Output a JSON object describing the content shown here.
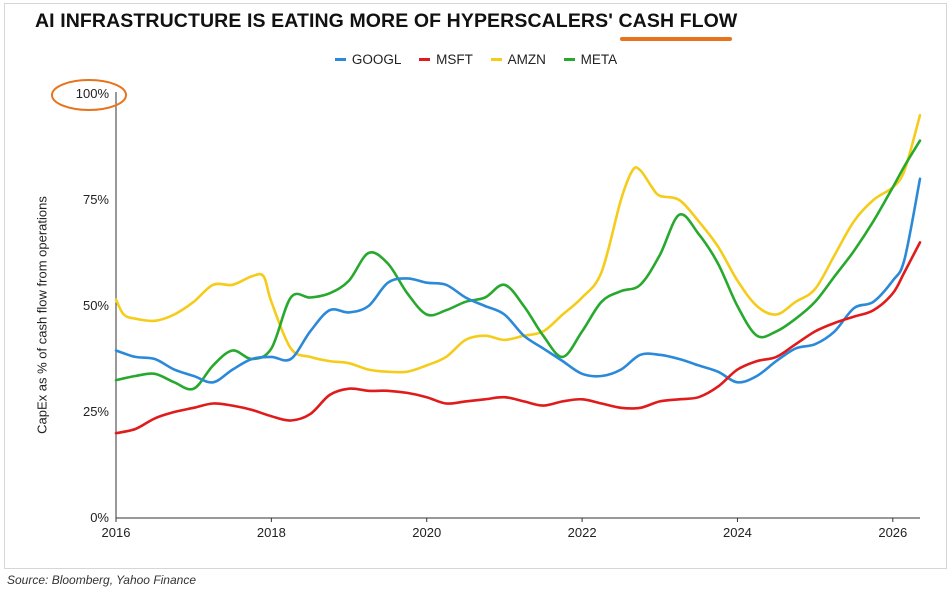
{
  "header": {
    "title": "AI INFRASTRUCTURE IS EATING MORE OF HYPERSCALERS' CASH FLOW"
  },
  "source_note": "Source: Bloomberg, Yahoo Finance",
  "colors": {
    "GOOGL": "#2b89d9",
    "MSFT": "#e01b1b",
    "AMZN": "#f5cc1a",
    "META": "#27a92d",
    "highlight": "#e8731d"
  },
  "chart_data": {
    "type": "line",
    "title": "AI INFRASTRUCTURE IS EATING MORE OF HYPERSCALERS' CASH FLOW",
    "xlabel": "",
    "ylabel": "CapEx as % of cash flow from operations",
    "xlim": [
      2016,
      2026.35
    ],
    "ylim": [
      0,
      100
    ],
    "x_ticks": [
      "2016",
      "2018",
      "2020",
      "2022",
      "2024",
      "2026"
    ],
    "y_ticks": [
      "0%",
      "25%",
      "50%",
      "75%",
      "100%"
    ],
    "legend_position": "top-center",
    "grid": false,
    "series": [
      {
        "name": "GOOGL",
        "x": [
          2016,
          2016.25,
          2016.5,
          2016.75,
          2017,
          2017.25,
          2017.5,
          2017.75,
          2018,
          2018.25,
          2018.5,
          2018.75,
          2019,
          2019.25,
          2019.5,
          2019.75,
          2020,
          2020.25,
          2020.5,
          2020.75,
          2021,
          2021.25,
          2021.5,
          2021.75,
          2022,
          2022.25,
          2022.5,
          2022.75,
          2023,
          2023.25,
          2023.5,
          2023.75,
          2024,
          2024.25,
          2024.5,
          2024.75,
          2025,
          2025.25,
          2025.5,
          2025.75,
          2026,
          2026.15,
          2026.35
        ],
        "values": [
          39.5,
          38,
          37.5,
          35,
          33.5,
          32,
          35,
          37.5,
          38,
          37.5,
          44,
          49,
          48.5,
          50,
          55.5,
          56.5,
          55.5,
          55,
          52,
          50,
          48,
          43,
          40,
          37,
          34,
          33.5,
          35,
          38.5,
          38.5,
          37.5,
          36,
          34.5,
          32,
          33.5,
          37,
          40,
          41,
          44,
          49.5,
          51,
          56,
          61,
          80
        ]
      },
      {
        "name": "MSFT",
        "x": [
          2016,
          2016.25,
          2016.5,
          2016.75,
          2017,
          2017.25,
          2017.5,
          2017.75,
          2018,
          2018.25,
          2018.5,
          2018.75,
          2019,
          2019.25,
          2019.5,
          2019.75,
          2020,
          2020.25,
          2020.5,
          2020.75,
          2021,
          2021.25,
          2021.5,
          2021.75,
          2022,
          2022.25,
          2022.5,
          2022.75,
          2023,
          2023.25,
          2023.5,
          2023.75,
          2024,
          2024.25,
          2024.5,
          2024.75,
          2025,
          2025.25,
          2025.5,
          2025.75,
          2026,
          2026.15,
          2026.35
        ],
        "values": [
          20,
          21,
          23.5,
          25,
          26,
          27,
          26.5,
          25.5,
          24,
          23,
          24.5,
          29,
          30.5,
          30,
          30,
          29.5,
          28.5,
          27,
          27.5,
          28,
          28.5,
          27.5,
          26.5,
          27.5,
          28,
          27,
          26,
          26,
          27.5,
          28,
          28.5,
          31,
          35,
          37,
          38,
          41,
          44,
          46,
          47.5,
          49,
          53,
          58,
          65
        ]
      },
      {
        "name": "AMZN",
        "x": [
          2016,
          2016.1,
          2016.25,
          2016.5,
          2016.75,
          2017,
          2017.25,
          2017.5,
          2017.75,
          2017.9,
          2018,
          2018.25,
          2018.5,
          2018.75,
          2019,
          2019.25,
          2019.5,
          2019.75,
          2020,
          2020.25,
          2020.5,
          2020.75,
          2021,
          2021.25,
          2021.5,
          2021.75,
          2022,
          2022.25,
          2022.5,
          2022.65,
          2022.75,
          2022.9,
          2023,
          2023.25,
          2023.5,
          2023.75,
          2024,
          2024.25,
          2024.5,
          2024.75,
          2025,
          2025.25,
          2025.5,
          2025.75,
          2026,
          2026.15,
          2026.35
        ],
        "values": [
          51.5,
          48,
          47,
          46.5,
          48,
          51,
          55,
          55,
          57,
          57,
          51,
          40,
          38,
          37,
          36.5,
          35,
          34.5,
          34.5,
          36,
          38,
          42,
          43,
          42,
          43,
          44,
          48,
          52,
          58,
          75,
          82,
          82,
          78,
          76,
          75,
          70,
          64,
          56,
          50,
          48,
          51,
          54,
          62,
          70,
          75,
          78,
          82,
          95
        ]
      },
      {
        "name": "META",
        "x": [
          2016,
          2016.25,
          2016.5,
          2016.75,
          2017,
          2017.25,
          2017.5,
          2017.75,
          2018,
          2018.25,
          2018.5,
          2018.75,
          2019,
          2019.25,
          2019.5,
          2019.75,
          2020,
          2020.25,
          2020.5,
          2020.75,
          2021,
          2021.25,
          2021.5,
          2021.75,
          2022,
          2022.25,
          2022.5,
          2022.75,
          2023,
          2023.25,
          2023.5,
          2023.75,
          2024,
          2024.25,
          2024.5,
          2024.75,
          2025,
          2025.25,
          2025.5,
          2025.75,
          2026,
          2026.15,
          2026.35
        ],
        "values": [
          32.5,
          33.5,
          34,
          32,
          30.5,
          36,
          39.5,
          37.5,
          40,
          52,
          52,
          53,
          56,
          62.5,
          60,
          53,
          48,
          49,
          51,
          52,
          55,
          50,
          43,
          38,
          44,
          51,
          53.5,
          55,
          62,
          71.5,
          67,
          60,
          50,
          43,
          44,
          47,
          51,
          57,
          63,
          70,
          78,
          83,
          89
        ]
      }
    ],
    "annotations": [
      {
        "type": "circle",
        "target": "100% y-tick label",
        "color": "#e8731d"
      },
      {
        "type": "underline",
        "target": "CASH FLOW in title",
        "color": "#e8731d"
      }
    ]
  }
}
